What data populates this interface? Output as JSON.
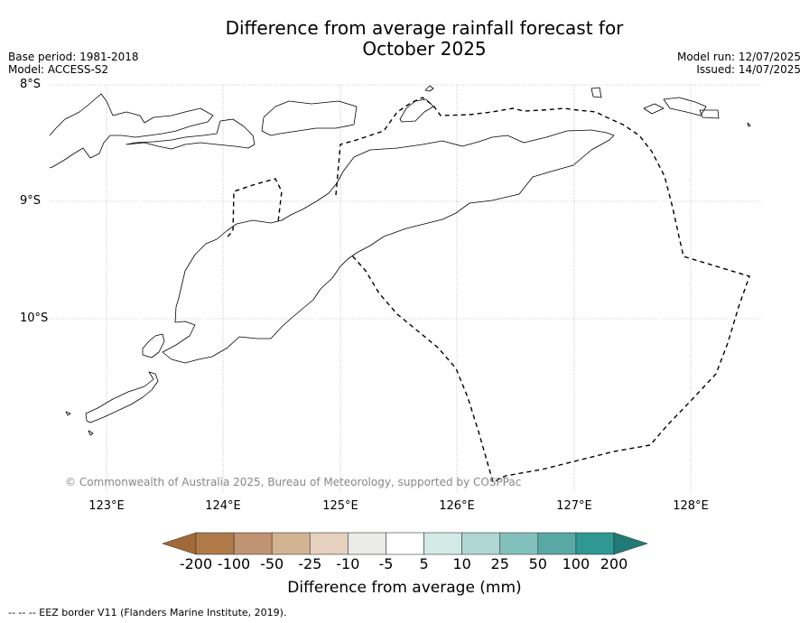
{
  "title_line1": "Difference from average rainfall forecast for",
  "title_line2": "October 2025",
  "base_period": "Base period: 1981-2018",
  "model": "Model: ACCESS-S2",
  "model_run": "Model run: 12/07/2025",
  "issued": "Issued: 14/07/2025",
  "lat_labels": [
    "8°S",
    "9°S",
    "10°S"
  ],
  "lon_labels": [
    "123°E",
    "124°E",
    "125°E",
    "126°E",
    "127°E",
    "128°E"
  ],
  "copyright": "© Commonwealth of Australia 2025, Bureau of Meteorology, supported by COSPPac",
  "colorbar": {
    "labels": [
      "-200",
      "-100",
      "-50",
      "-25",
      "-10",
      "-5",
      "5",
      "10",
      "25",
      "50",
      "100",
      "200"
    ],
    "colors": [
      "#9f6a37",
      "#b07a48",
      "#c09472",
      "#d2b392",
      "#e5d1bd",
      "#ebebe9",
      "#ffffff",
      "#d3ebe7",
      "#afd7d3",
      "#82c0bb",
      "#58a9a6",
      "#2f9893",
      "#207b77"
    ],
    "title": "Difference from average (mm)"
  },
  "footnote": "-- -- -- EEZ border V11 (Flanders Marine Institute, 2019)."
}
